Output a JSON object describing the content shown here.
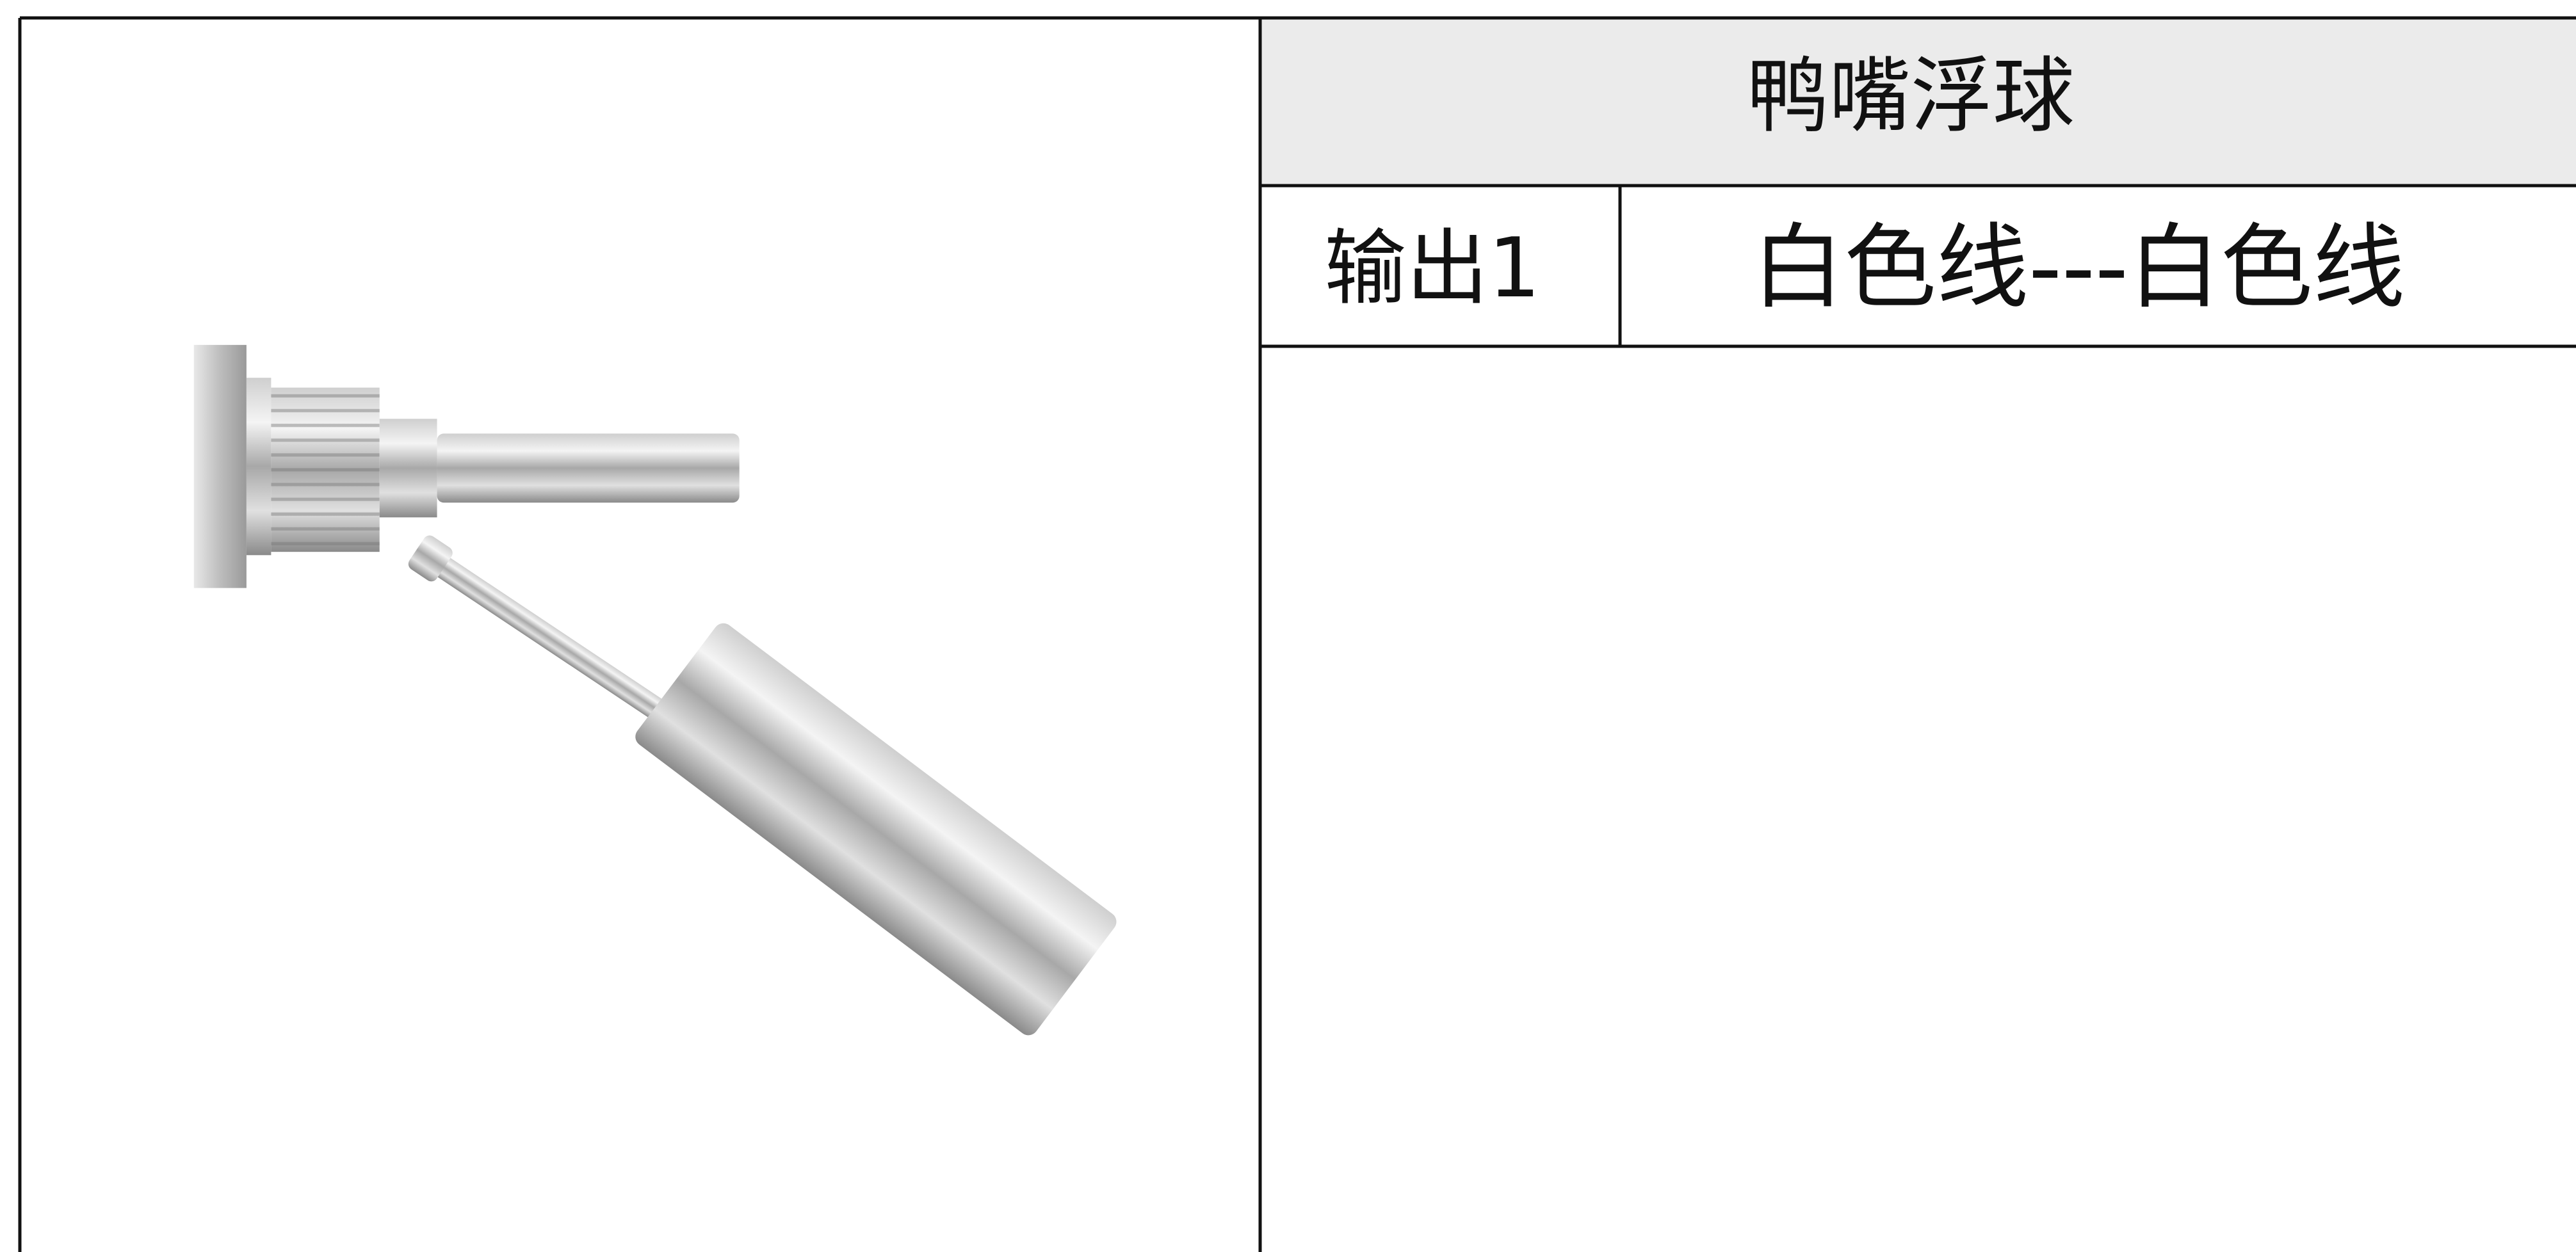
{
  "table": {
    "title": "鸭嘴浮球",
    "rows": [
      [
        "输出1",
        "白色线---白色线"
      ]
    ]
  }
}
